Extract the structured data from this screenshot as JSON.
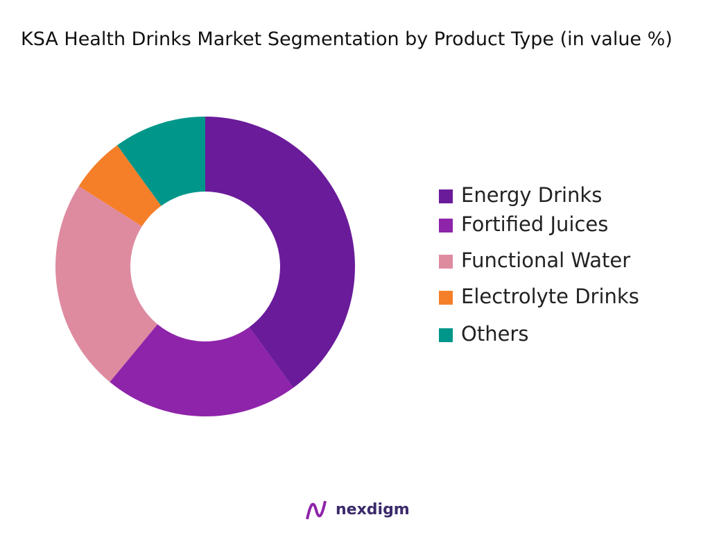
{
  "chart_data": {
    "type": "donut",
    "title": "KSA Health Drinks Market Segmentation by Product Type (in value %)",
    "categories": [
      "Energy Drinks",
      "Fortified Juices",
      "Functional Water",
      "Electrolyte Drinks",
      "Others"
    ],
    "values": [
      40,
      21,
      23,
      6,
      10
    ],
    "colors": [
      "#6a1b9a",
      "#8e24aa",
      "#de8ba0",
      "#f57f29",
      "#00968a"
    ],
    "legend": "right"
  },
  "brand": "nexdigm"
}
